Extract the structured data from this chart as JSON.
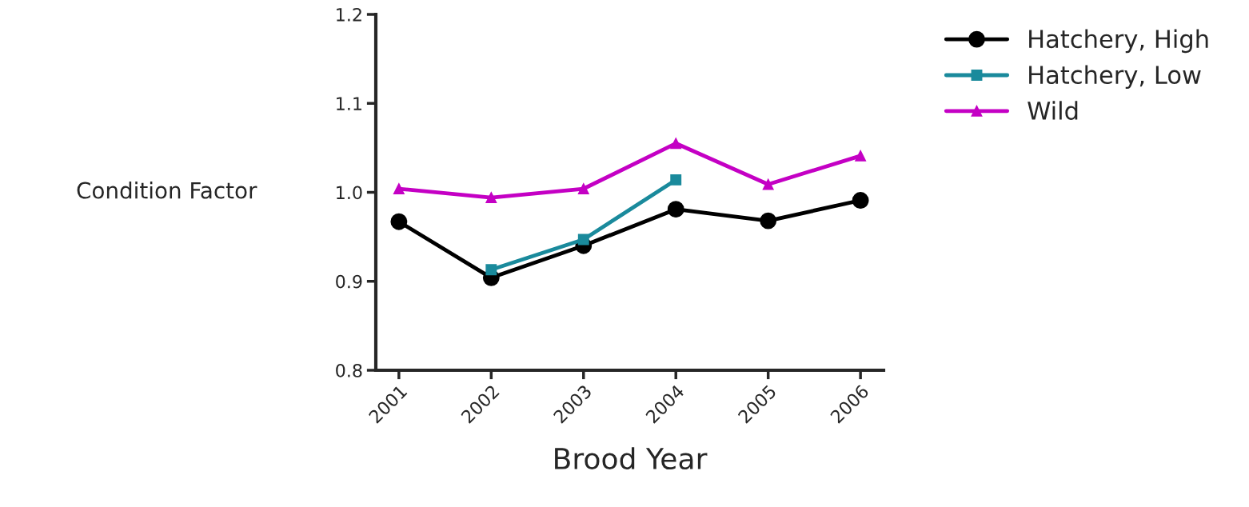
{
  "chart_data": {
    "type": "line",
    "xlabel": "Brood Year",
    "ylabel": "Condition Factor",
    "categories": [
      "2001",
      "2002",
      "2003",
      "2004",
      "2005",
      "2006"
    ],
    "series": [
      {
        "name": "Hatchery, High",
        "color": "#000000",
        "marker": "circle",
        "values": [
          0.967,
          0.904,
          0.94,
          0.981,
          0.968,
          0.991
        ]
      },
      {
        "name": "Hatchery, Low",
        "color": "#1a8a9c",
        "marker": "square",
        "values": [
          null,
          0.913,
          0.947,
          1.014,
          null,
          null
        ]
      },
      {
        "name": "Wild",
        "color": "#c400c4",
        "marker": "triangle",
        "values": [
          1.004,
          0.994,
          1.004,
          1.055,
          1.009,
          1.041
        ]
      }
    ],
    "ylim": [
      0.8,
      1.2
    ],
    "yticks": [
      0.8,
      0.9,
      {
        "value": 1,
        "label": "1.0"
      },
      1.1,
      1.2
    ],
    "legend": "top right",
    "grid": false
  }
}
